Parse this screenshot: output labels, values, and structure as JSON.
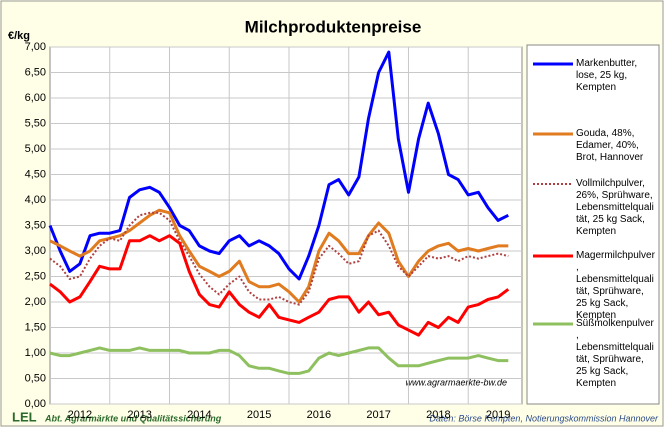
{
  "chart_data": {
    "type": "line",
    "title": "Milchproduktenpreise",
    "y_label": "€/kg",
    "watermark": "www.agrarmaerkte-bw.de",
    "logo": "LEL",
    "footer_left": "Abt. Agrarmärkte und Qualitätssicherung",
    "footer_right": "Daten: Börse Kempten, Notierungskommission Hannover",
    "x": [
      2012,
      2012.17,
      2012.33,
      2012.5,
      2012.67,
      2012.83,
      2013,
      2013.17,
      2013.33,
      2013.5,
      2013.67,
      2013.83,
      2014,
      2014.17,
      2014.33,
      2014.5,
      2014.67,
      2014.83,
      2015,
      2015.17,
      2015.33,
      2015.5,
      2015.67,
      2015.83,
      2016,
      2016.17,
      2016.33,
      2016.5,
      2016.67,
      2016.83,
      2017,
      2017.17,
      2017.33,
      2017.5,
      2017.67,
      2017.83,
      2018,
      2018.17,
      2018.33,
      2018.5,
      2018.67,
      2018.83,
      2019,
      2019.17,
      2019.33,
      2019.5,
      2019.67
    ],
    "xlim": [
      2012,
      2019.9
    ],
    "xticks": [
      {
        "value": 2012.5,
        "label": "2012"
      },
      {
        "value": 2013.5,
        "label": "2013"
      },
      {
        "value": 2014.5,
        "label": "2014"
      },
      {
        "value": 2015.5,
        "label": "2015"
      },
      {
        "value": 2016.5,
        "label": "2016"
      },
      {
        "value": 2017.5,
        "label": "2017"
      },
      {
        "value": 2018.5,
        "label": "2018"
      },
      {
        "value": 2019.5,
        "label": "2019"
      }
    ],
    "xgrid": [
      2013,
      2014,
      2015,
      2016,
      2017,
      2018,
      2019
    ],
    "ylim": [
      0,
      7
    ],
    "yticks": [
      {
        "value": 0,
        "label": "0,00"
      },
      {
        "value": 0.5,
        "label": "0,50"
      },
      {
        "value": 1,
        "label": "1,00"
      },
      {
        "value": 1.5,
        "label": "1,50"
      },
      {
        "value": 2,
        "label": "2,00"
      },
      {
        "value": 2.5,
        "label": "2,50"
      },
      {
        "value": 3,
        "label": "3,00"
      },
      {
        "value": 3.5,
        "label": "3,50"
      },
      {
        "value": 4,
        "label": "4,00"
      },
      {
        "value": 4.5,
        "label": "4,50"
      },
      {
        "value": 5,
        "label": "5,00"
      },
      {
        "value": 5.5,
        "label": "5,50"
      },
      {
        "value": 6,
        "label": "6,00"
      },
      {
        "value": 6.5,
        "label": "6,50"
      },
      {
        "value": 7,
        "label": "7,00"
      }
    ],
    "grid": true,
    "legend": "right",
    "series": [
      {
        "name": "Markenbutter, lose, 25 kg, Kempten",
        "color": "#0000ff",
        "values": [
          3.5,
          3.0,
          2.6,
          2.75,
          3.3,
          3.35,
          3.35,
          3.4,
          4.05,
          4.2,
          4.25,
          4.15,
          3.85,
          3.5,
          3.4,
          3.1,
          3.0,
          2.95,
          3.2,
          3.3,
          3.1,
          3.2,
          3.1,
          2.95,
          2.65,
          2.45,
          2.9,
          3.5,
          4.3,
          4.4,
          4.1,
          4.45,
          5.6,
          6.5,
          6.9,
          5.2,
          4.15,
          5.2,
          5.9,
          5.3,
          4.5,
          4.4,
          4.1,
          4.15,
          3.85,
          3.6,
          3.7
        ]
      },
      {
        "name": "Gouda, 48%, Edamer, 40%, Brot, Hannover",
        "color": "#e07b20",
        "values": [
          3.2,
          3.1,
          3.0,
          2.9,
          3.0,
          3.2,
          3.25,
          3.3,
          3.4,
          3.55,
          3.7,
          3.8,
          3.75,
          3.3,
          3.0,
          2.7,
          2.6,
          2.5,
          2.6,
          2.8,
          2.4,
          2.3,
          2.3,
          2.35,
          2.2,
          2.0,
          2.3,
          3.0,
          3.35,
          3.2,
          2.95,
          2.95,
          3.3,
          3.55,
          3.35,
          2.8,
          2.5,
          2.8,
          3.0,
          3.1,
          3.15,
          3.0,
          3.05,
          3.0,
          3.05,
          3.1,
          3.1
        ]
      },
      {
        "name": "Vollmilchpulver, 26%, Sprühware, Lebensmittelqualität, 25 kg Sack, Kempten",
        "color": "#b04040",
        "dashed": true,
        "values": [
          2.85,
          2.7,
          2.45,
          2.5,
          2.85,
          3.1,
          3.25,
          3.2,
          3.5,
          3.7,
          3.75,
          3.75,
          3.6,
          3.2,
          2.9,
          2.55,
          2.3,
          2.15,
          2.35,
          2.5,
          2.2,
          2.05,
          2.05,
          2.1,
          2.0,
          1.95,
          2.2,
          2.85,
          3.1,
          2.95,
          2.75,
          2.8,
          3.3,
          3.4,
          3.1,
          2.7,
          2.5,
          2.7,
          2.9,
          2.85,
          2.9,
          2.8,
          2.9,
          2.85,
          2.9,
          2.95,
          2.9
        ]
      },
      {
        "name": "Magermilchpulver, Lebensmittelqualität, Sprühware, 25 kg Sack, Kempten",
        "color": "#ff0000",
        "values": [
          2.35,
          2.2,
          2.0,
          2.1,
          2.4,
          2.7,
          2.65,
          2.65,
          3.2,
          3.2,
          3.3,
          3.2,
          3.3,
          3.15,
          2.6,
          2.15,
          1.95,
          1.9,
          2.2,
          1.95,
          1.8,
          1.7,
          1.95,
          1.7,
          1.65,
          1.6,
          1.7,
          1.8,
          2.05,
          2.1,
          2.1,
          1.8,
          2.0,
          1.75,
          1.8,
          1.55,
          1.45,
          1.35,
          1.6,
          1.5,
          1.7,
          1.6,
          1.9,
          1.95,
          2.05,
          2.1,
          2.25
        ]
      },
      {
        "name": "Süßmolkenpulver, Lebensmittelqualität, Sprühware, 25 kg Sack, Kempten",
        "color": "#8fc060",
        "values": [
          1.0,
          0.95,
          0.95,
          1.0,
          1.05,
          1.1,
          1.05,
          1.05,
          1.05,
          1.1,
          1.05,
          1.05,
          1.05,
          1.05,
          1.0,
          1.0,
          1.0,
          1.05,
          1.05,
          0.95,
          0.75,
          0.7,
          0.7,
          0.65,
          0.6,
          0.6,
          0.65,
          0.9,
          1.0,
          0.95,
          1.0,
          1.05,
          1.1,
          1.1,
          0.9,
          0.75,
          0.75,
          0.75,
          0.8,
          0.85,
          0.9,
          0.9,
          0.9,
          0.95,
          0.9,
          0.85,
          0.85
        ]
      }
    ]
  }
}
